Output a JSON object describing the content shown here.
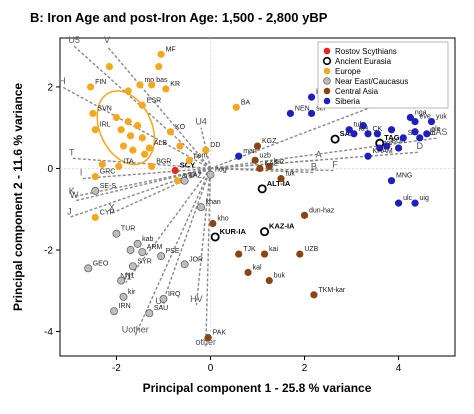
{
  "chart_data": {
    "type": "scatter",
    "title": "B: Iron Age and post-Iron Age: 1,500 - 2,800 yBP",
    "xlabel": "Principal component 1 -  25.8 % variance",
    "ylabel": "Principal component 2 - 11.6 % variance",
    "xlim": [
      -3.2,
      5.2
    ],
    "ylim": [
      -4.6,
      3.2
    ],
    "xticks": [
      -2,
      0,
      2,
      4
    ],
    "yticks": [
      -4,
      -2,
      0,
      2
    ],
    "legend_position": "top-right",
    "colors": {
      "rostov": "#e8261f",
      "eurasia_fill": "#ffffff",
      "eurasia_edge": "#000000",
      "europe": "#f4a81d",
      "neareast": "#bdbdbd",
      "centralasia": "#8b4513",
      "siberia": "#1f1fbf",
      "vector": "#888888",
      "ellipse": "#f4a81d"
    },
    "series": [
      {
        "name": "Rostov Scythians",
        "key": "rostov",
        "points": [
          {
            "x": -0.75,
            "y": -0.05,
            "label": "SCY"
          }
        ]
      },
      {
        "name": "Ancient Eurasia",
        "key": "eurasia",
        "points": [
          {
            "x": 2.65,
            "y": 0.72,
            "label": "SAR"
          },
          {
            "x": 3.6,
            "y": 0.62,
            "label": "TAG"
          },
          {
            "x": 1.1,
            "y": -0.5,
            "label": "ALT-IA"
          },
          {
            "x": 0.1,
            "y": -1.68,
            "label": "KUR-IA"
          },
          {
            "x": 1.15,
            "y": -1.55,
            "label": "KAZ-IA"
          }
        ]
      },
      {
        "name": "Europe",
        "key": "europe",
        "points": [
          {
            "x": -1.05,
            "y": 2.8,
            "label": "MF"
          },
          {
            "x": -2.15,
            "y": 2.5,
            "label": ""
          },
          {
            "x": -1.1,
            "y": 2.5,
            "label": ""
          },
          {
            "x": -2.55,
            "y": 2.0,
            "label": "FIN"
          },
          {
            "x": -1.5,
            "y": 2.05,
            "label": "mo"
          },
          {
            "x": -1.25,
            "y": 2.05,
            "label": "bas"
          },
          {
            "x": -0.95,
            "y": 1.95,
            "label": "KR"
          },
          {
            "x": -1.75,
            "y": 1.9,
            "label": ""
          },
          {
            "x": -1.45,
            "y": 1.55,
            "label": "ESR"
          },
          {
            "x": -2.5,
            "y": 1.35,
            "label": "SVN"
          },
          {
            "x": -2.0,
            "y": 1.25,
            "label": ""
          },
          {
            "x": -1.75,
            "y": 1.15,
            "label": ""
          },
          {
            "x": -1.55,
            "y": 1.05,
            "label": ""
          },
          {
            "x": -2.45,
            "y": 0.95,
            "label": "IRL"
          },
          {
            "x": -1.9,
            "y": 0.95,
            "label": ""
          },
          {
            "x": -1.7,
            "y": 0.8,
            "label": ""
          },
          {
            "x": -1.45,
            "y": 0.75,
            "label": ""
          },
          {
            "x": -1.85,
            "y": 0.55,
            "label": ""
          },
          {
            "x": -1.65,
            "y": 0.45,
            "label": ""
          },
          {
            "x": -1.4,
            "y": 0.35,
            "label": ""
          },
          {
            "x": -2.3,
            "y": 0.1,
            "label": ""
          },
          {
            "x": -1.95,
            "y": 0.05,
            "label": "ITA"
          },
          {
            "x": -1.3,
            "y": 0.5,
            "label": "ALB"
          },
          {
            "x": -1.25,
            "y": 0.05,
            "label": "BGR"
          },
          {
            "x": -0.85,
            "y": 0.9,
            "label": "KO"
          },
          {
            "x": -0.65,
            "y": 0.55,
            "label": ""
          },
          {
            "x": -0.1,
            "y": 0.45,
            "label": "DD"
          },
          {
            "x": -0.45,
            "y": 0.2,
            "label": "pom"
          },
          {
            "x": -0.7,
            "y": -0.3,
            "label": "anu"
          },
          {
            "x": 0.55,
            "y": 1.5,
            "label": "BA"
          },
          {
            "x": -2.45,
            "y": -0.2,
            "label": "GRC"
          },
          {
            "x": -2.45,
            "y": -1.2,
            "label": "CYP"
          }
        ]
      },
      {
        "name": "Near East/Caucasus",
        "key": "neareast",
        "points": [
          {
            "x": -2.45,
            "y": -0.55,
            "label": "SE-S"
          },
          {
            "x": -0.55,
            "y": -0.3,
            "label": "TAZ"
          },
          {
            "x": 0.0,
            "y": -0.15,
            "label": "nog"
          },
          {
            "x": -0.2,
            "y": -0.95,
            "label": "khan"
          },
          {
            "x": -2.0,
            "y": -1.6,
            "label": "TUR"
          },
          {
            "x": -1.55,
            "y": -1.85,
            "label": "kab"
          },
          {
            "x": -1.45,
            "y": -2.05,
            "label": "ARM"
          },
          {
            "x": -1.05,
            "y": -2.15,
            "label": "PSE"
          },
          {
            "x": -2.6,
            "y": -2.45,
            "label": "GEO"
          },
          {
            "x": -1.65,
            "y": -2.4,
            "label": "SYR"
          },
          {
            "x": -1.7,
            "y": -2.0,
            "label": ""
          },
          {
            "x": -0.55,
            "y": -2.35,
            "label": "JOR"
          },
          {
            "x": -1.9,
            "y": -2.75,
            "label": "N1"
          },
          {
            "x": -1.85,
            "y": -3.15,
            "label": "kir"
          },
          {
            "x": -1.0,
            "y": -3.2,
            "label": "IRQ"
          },
          {
            "x": -2.05,
            "y": -3.5,
            "label": "IRN"
          },
          {
            "x": -1.3,
            "y": -3.55,
            "label": "SAU"
          }
        ]
      },
      {
        "name": "Central Asia",
        "key": "centralasia",
        "points": [
          {
            "x": 1.0,
            "y": 0.55,
            "label": "KGZ"
          },
          {
            "x": 0.95,
            "y": 0.2,
            "label": "uzb"
          },
          {
            "x": 1.25,
            "y": 0.05,
            "label": "kaz"
          },
          {
            "x": 1.05,
            "y": 0.0,
            "label": "KAZ"
          },
          {
            "x": 1.5,
            "y": -0.25,
            "label": "tuk"
          },
          {
            "x": 0.05,
            "y": -1.35,
            "label": "kho"
          },
          {
            "x": 2.0,
            "y": -1.15,
            "label": "dun-haz"
          },
          {
            "x": 0.6,
            "y": -2.1,
            "label": "TJK"
          },
          {
            "x": 1.15,
            "y": -2.1,
            "label": "kai"
          },
          {
            "x": 1.9,
            "y": -2.1,
            "label": "UZB"
          },
          {
            "x": 0.8,
            "y": -2.55,
            "label": "kal"
          },
          {
            "x": 1.25,
            "y": -2.75,
            "label": "buk"
          },
          {
            "x": 2.2,
            "y": -3.1,
            "label": "TKM-kar"
          },
          {
            "x": -0.05,
            "y": -4.15,
            "label": "PAK"
          }
        ]
      },
      {
        "name": "Siberia",
        "key": "siberia",
        "points": [
          {
            "x": 2.15,
            "y": 1.75,
            "label": "ket"
          },
          {
            "x": 1.7,
            "y": 1.35,
            "label": "NEN"
          },
          {
            "x": 2.15,
            "y": 1.35,
            "label": "sel"
          },
          {
            "x": 0.6,
            "y": 0.3,
            "label": "man"
          },
          {
            "x": 2.95,
            "y": 0.95,
            "label": "tub"
          },
          {
            "x": 3.05,
            "y": 0.85,
            "label": "KH"
          },
          {
            "x": 3.35,
            "y": 0.85,
            "label": "CK"
          },
          {
            "x": 3.25,
            "y": 1.05,
            "label": ""
          },
          {
            "x": 3.55,
            "y": 0.85,
            "label": ""
          },
          {
            "x": 3.85,
            "y": 0.95,
            "label": ""
          },
          {
            "x": 3.6,
            "y": 0.5,
            "label": "tof"
          },
          {
            "x": 3.75,
            "y": 0.55,
            "label": "BUR"
          },
          {
            "x": 4.1,
            "y": 0.75,
            "label": "SA"
          },
          {
            "x": 3.35,
            "y": 0.3,
            "label": "KHAM"
          },
          {
            "x": 4.25,
            "y": 1.25,
            "label": "nga"
          },
          {
            "x": 4.35,
            "y": 1.15,
            "label": "eve"
          },
          {
            "x": 4.7,
            "y": 1.15,
            "label": "yuk"
          },
          {
            "x": 4.45,
            "y": 0.75,
            "label": "evn"
          },
          {
            "x": 4.6,
            "y": 0.85,
            "label": "ale"
          },
          {
            "x": 4.35,
            "y": 0.9,
            "label": ""
          },
          {
            "x": 4.0,
            "y": 0.5,
            "label": ""
          },
          {
            "x": 3.85,
            "y": -0.3,
            "label": "MNG"
          },
          {
            "x": 4.0,
            "y": -0.85,
            "label": "ulc"
          },
          {
            "x": 4.35,
            "y": -0.85,
            "label": "uig"
          }
        ]
      }
    ],
    "vectors": [
      {
        "label": "U5",
        "x": -2.9,
        "y": 3.0
      },
      {
        "label": "V",
        "x": -2.2,
        "y": 3.0
      },
      {
        "label": "H",
        "x": -3.15,
        "y": 2.0
      },
      {
        "label": "U4",
        "x": -0.2,
        "y": 1.0
      },
      {
        "label": "I",
        "x": -2.75,
        "y": -0.25
      },
      {
        "label": "T",
        "x": -2.95,
        "y": 0.25
      },
      {
        "label": "K",
        "x": -2.95,
        "y": -0.7
      },
      {
        "label": "W",
        "x": -2.9,
        "y": -0.8
      },
      {
        "label": "J",
        "x": -3.0,
        "y": -1.2
      },
      {
        "label": "X",
        "x": -2.1,
        "y": -1.1
      },
      {
        "label": "N1",
        "x": -1.8,
        "y": -2.8
      },
      {
        "label": "U7",
        "x": -1.05,
        "y": -3.4
      },
      {
        "label": "HV",
        "x": -0.3,
        "y": -3.35
      },
      {
        "label": "Uother",
        "x": -1.6,
        "y": -4.1
      },
      {
        "label": "other",
        "x": -0.1,
        "y": -4.4
      },
      {
        "label": "A",
        "x": 2.3,
        "y": 0.2
      },
      {
        "label": "B",
        "x": 2.2,
        "y": -0.1
      },
      {
        "label": "F",
        "x": 2.65,
        "y": -0.05
      },
      {
        "label": "C",
        "x": 4.55,
        "y": 2.0
      },
      {
        "label": "D",
        "x": 4.45,
        "y": 0.4
      },
      {
        "label": "EAS",
        "x": 4.85,
        "y": 0.75
      }
    ],
    "ellipse": {
      "cx": -1.8,
      "cy": 1.0,
      "rx": 0.55,
      "ry": 0.95,
      "angle": -25
    }
  }
}
